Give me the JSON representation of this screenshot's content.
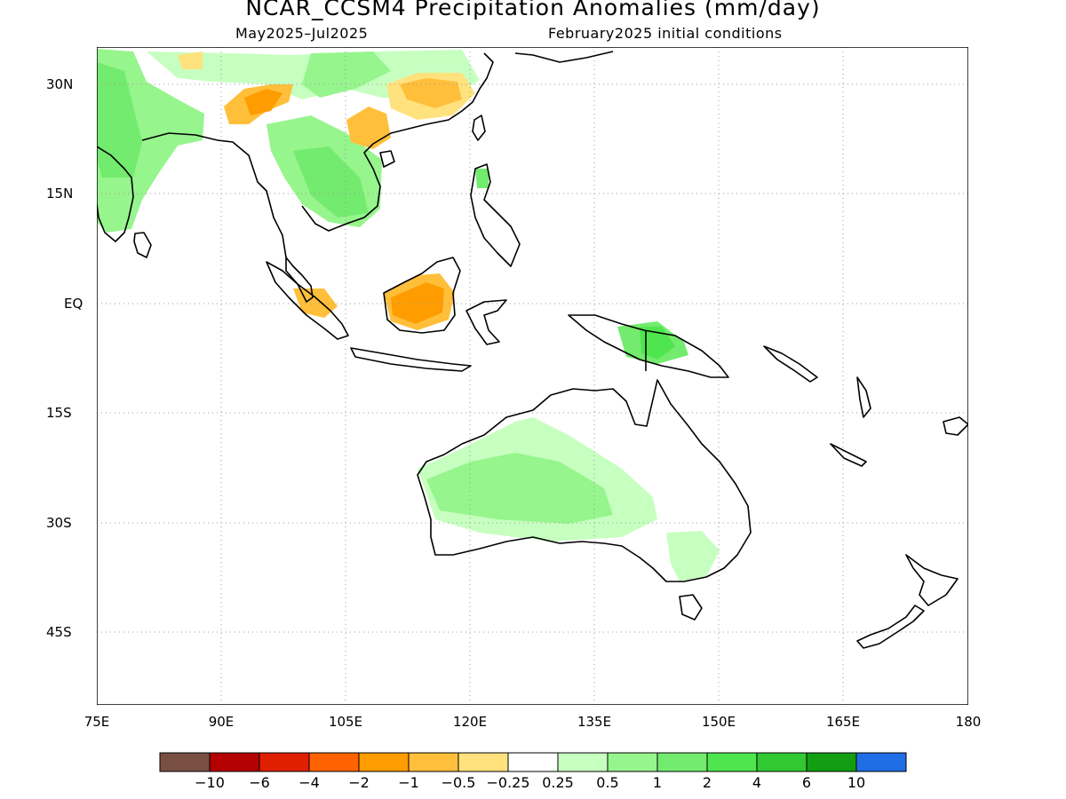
{
  "title": "NCAR_CCSM4 Precipitation Anomalies (mm/day)",
  "subtitle_left": "May2025–Jul2025",
  "subtitle_right": "February2025 initial conditions",
  "lat_labels": [
    "30N",
    "15N",
    "EQ",
    "15S",
    "30S",
    "45S"
  ],
  "lon_labels": [
    "75E",
    "90E",
    "105E",
    "120E",
    "135E",
    "150E",
    "165E",
    "180"
  ],
  "colorbar": {
    "colors": [
      "#7a4f43",
      "#b30000",
      "#e01f00",
      "#ff6200",
      "#ff9c00",
      "#ffbf3a",
      "#ffe27e",
      "#ffffff",
      "#c7ffc0",
      "#96f58d",
      "#73eb6e",
      "#4ee54e",
      "#32c832",
      "#129e12",
      "#206ee6"
    ],
    "labels": [
      "−10",
      "−6",
      "−4",
      "−2",
      "−1",
      "−0.5",
      "−0.25",
      "0.25",
      "0.5",
      "1",
      "2",
      "4",
      "6",
      "10"
    ]
  },
  "map": {
    "lon_range": [
      75,
      180
    ],
    "lat_range": [
      -52,
      37
    ],
    "land_color": "#ffffff",
    "coast_color": "#000000",
    "grid_style": "dotted"
  }
}
